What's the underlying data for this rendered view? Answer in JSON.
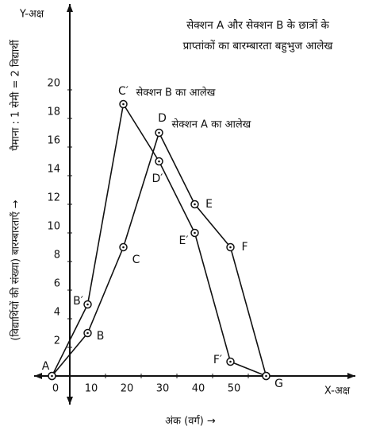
{
  "chart_data": {
    "type": "line",
    "title_lines": [
      "सेक्शन A और सेक्शन B के छात्रों के",
      "प्राप्तांकों का बारम्बारता बहुभुज आलेख"
    ],
    "y_axis_name": "Y-अक्ष",
    "x_axis_name": "X-अक्ष",
    "ylabel": "(विद्यार्थियों की संख्या) बारम्बारताएँ →",
    "scale_note": "पैमाना : 1 सेमी = 2 विद्यार्थी",
    "xlabel": "अंक (वर्ग) →",
    "x": [
      -5,
      5,
      15,
      25,
      35,
      45,
      55
    ],
    "series": [
      {
        "name": "सेक्शन A का आलेख",
        "color": "#111111",
        "values": [
          0,
          3,
          9,
          17,
          12,
          9,
          0
        ],
        "point_labels": [
          "A",
          "B",
          "C",
          "D",
          "E",
          "F",
          "G"
        ]
      },
      {
        "name": "सेक्शन B का आलेख",
        "color": "#111111",
        "values": [
          0,
          5,
          19,
          15,
          10,
          1,
          0
        ],
        "point_labels": [
          null,
          "B′",
          "C′",
          "D′",
          "E′",
          "F′",
          null
        ]
      }
    ],
    "xlim": [
      -10,
      80
    ],
    "ylim": [
      -2,
      26
    ],
    "xticks": [
      0,
      10,
      20,
      30,
      40,
      50
    ],
    "yticks": [
      2,
      4,
      6,
      8,
      10,
      12,
      14,
      16,
      18,
      20
    ]
  }
}
